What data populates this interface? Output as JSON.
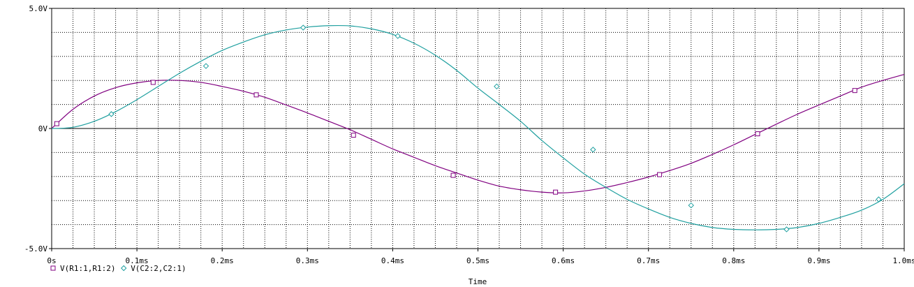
{
  "chart_data": {
    "type": "line",
    "xlabel": "Time",
    "ylabel": "",
    "x_unit": "ms",
    "xlim": [
      0,
      1.0
    ],
    "ylim": [
      -5.0,
      5.0
    ],
    "grid": true,
    "legend_position": "bottom-left",
    "x_ticks": [
      {
        "value": 0,
        "label": "0s"
      },
      {
        "value": 0.1,
        "label": "0.1ms"
      },
      {
        "value": 0.2,
        "label": "0.2ms"
      },
      {
        "value": 0.3,
        "label": "0.3ms"
      },
      {
        "value": 0.4,
        "label": "0.4ms"
      },
      {
        "value": 0.5,
        "label": "0.5ms"
      },
      {
        "value": 0.6,
        "label": "0.6ms"
      },
      {
        "value": 0.7,
        "label": "0.7ms"
      },
      {
        "value": 0.8,
        "label": "0.8ms"
      },
      {
        "value": 0.9,
        "label": "0.9ms"
      },
      {
        "value": 1.0,
        "label": "1.0ms"
      }
    ],
    "y_ticks": [
      {
        "value": 5,
        "label": "5.0V"
      },
      {
        "value": 0,
        "label": "0V"
      },
      {
        "value": -5,
        "label": "-5.0V"
      }
    ],
    "series": [
      {
        "name": "V(R1:1,R1:2)",
        "color": "#800080",
        "marker": "square",
        "x": [
          0,
          0.025,
          0.05,
          0.075,
          0.1,
          0.125,
          0.15,
          0.175,
          0.2,
          0.225,
          0.25,
          0.275,
          0.3,
          0.325,
          0.35,
          0.375,
          0.4,
          0.425,
          0.45,
          0.475,
          0.5,
          0.525,
          0.55,
          0.575,
          0.6,
          0.625,
          0.65,
          0.675,
          0.7,
          0.725,
          0.75,
          0.775,
          0.8,
          0.825,
          0.85,
          0.875,
          0.9,
          0.925,
          0.95,
          0.975,
          1.0
        ],
        "y": [
          0,
          0.8,
          1.35,
          1.7,
          1.9,
          2.0,
          2.0,
          1.92,
          1.75,
          1.55,
          1.3,
          0.98,
          0.65,
          0.3,
          -0.05,
          -0.45,
          -0.85,
          -1.2,
          -1.55,
          -1.85,
          -2.15,
          -2.4,
          -2.55,
          -2.65,
          -2.68,
          -2.6,
          -2.45,
          -2.25,
          -2.02,
          -1.75,
          -1.45,
          -1.08,
          -0.68,
          -0.25,
          0.18,
          0.6,
          0.98,
          1.35,
          1.72,
          2.0,
          2.25
        ],
        "marker_x": [
          0.006,
          0.119,
          0.24,
          0.354,
          0.471,
          0.591,
          0.713,
          0.828,
          0.942
        ],
        "marker_y": [
          0.2,
          1.92,
          1.4,
          -0.28,
          -1.95,
          -2.65,
          -1.92,
          -0.22,
          1.58
        ]
      },
      {
        "name": "V(C2:2,C2:1)",
        "color": "#20a0a0",
        "marker": "diamond",
        "x": [
          0,
          0.025,
          0.05,
          0.075,
          0.1,
          0.125,
          0.15,
          0.175,
          0.2,
          0.225,
          0.25,
          0.275,
          0.3,
          0.325,
          0.35,
          0.375,
          0.4,
          0.425,
          0.45,
          0.475,
          0.5,
          0.525,
          0.55,
          0.575,
          0.6,
          0.625,
          0.65,
          0.675,
          0.7,
          0.725,
          0.75,
          0.775,
          0.8,
          0.825,
          0.85,
          0.875,
          0.9,
          0.925,
          0.95,
          0.975,
          1.0
        ],
        "y": [
          0,
          0.05,
          0.3,
          0.7,
          1.2,
          1.75,
          2.3,
          2.8,
          3.25,
          3.6,
          3.9,
          4.1,
          4.22,
          4.28,
          4.27,
          4.15,
          3.92,
          3.55,
          3.05,
          2.42,
          1.68,
          1.0,
          0.3,
          -0.5,
          -1.22,
          -1.9,
          -2.45,
          -2.95,
          -3.35,
          -3.7,
          -3.95,
          -4.12,
          -4.2,
          -4.22,
          -4.2,
          -4.12,
          -3.95,
          -3.7,
          -3.4,
          -2.95,
          -2.3
        ],
        "marker_x": [
          0.07,
          0.181,
          0.295,
          0.406,
          0.522,
          0.635,
          0.75,
          0.862,
          0.97
        ],
        "marker_y": [
          0.6,
          2.6,
          4.2,
          3.85,
          1.75,
          -0.88,
          -3.2,
          -4.2,
          -2.95
        ]
      }
    ]
  }
}
